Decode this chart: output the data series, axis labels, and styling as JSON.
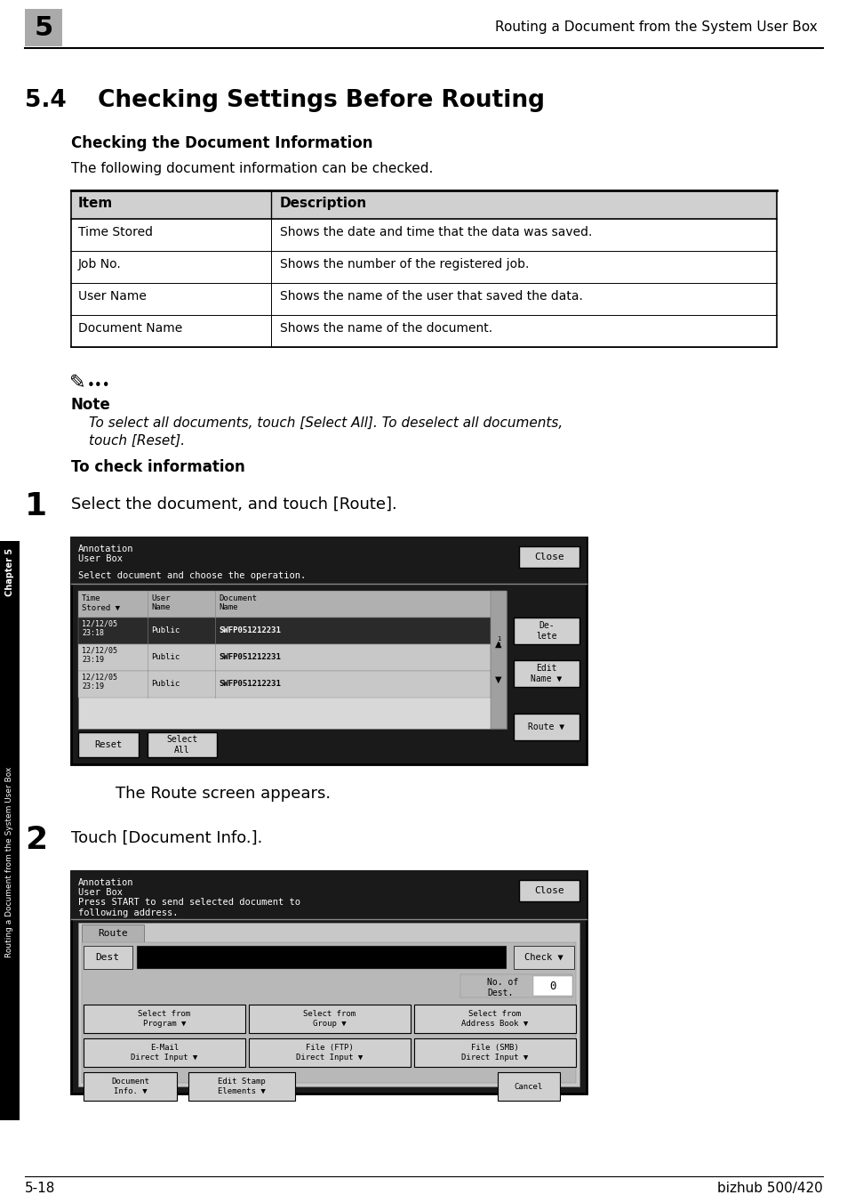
{
  "page_header_number": "5",
  "page_header_text": "Routing a Document from the System User Box",
  "section_number": "5.4",
  "section_title": "Checking Settings Before Routing",
  "subsection_title": "Checking the Document Information",
  "intro_text": "The following document information can be checked.",
  "table_headers": [
    "Item",
    "Description"
  ],
  "table_rows": [
    [
      "Time Stored",
      "Shows the date and time that the data was saved."
    ],
    [
      "Job No.",
      "Shows the number of the registered job."
    ],
    [
      "User Name",
      "Shows the name of the user that saved the data."
    ],
    [
      "Document Name",
      "Shows the name of the document."
    ]
  ],
  "note_label": "Note",
  "note_text_line1": "To select all documents, touch [Select All]. To deselect all documents,",
  "note_text_line2": "touch [Reset].",
  "to_check_heading": "To check information",
  "step1_num": "1",
  "step1_text": "Select the document, and touch [Route].",
  "step1_caption": "The Route screen appears.",
  "step2_num": "2",
  "step2_text": "Touch [Document Info.].",
  "footer_left": "5-18",
  "footer_right": "bizhub 500/420",
  "sidebar_text": "Routing a Document from the System User Box",
  "sidebar_chapter": "Chapter 5",
  "bg_color": "#ffffff",
  "table_header_bg": "#d0d0d0",
  "sidebar_bg": "#000000",
  "sidebar_text_color": "#ffffff",
  "screen_dark_bg": "#1a1a1a",
  "screen_mid_bg": "#888888",
  "screen_light_bg": "#c8c8c8",
  "screen_white": "#ffffff",
  "screen_row_selected": "#2a2a2a"
}
